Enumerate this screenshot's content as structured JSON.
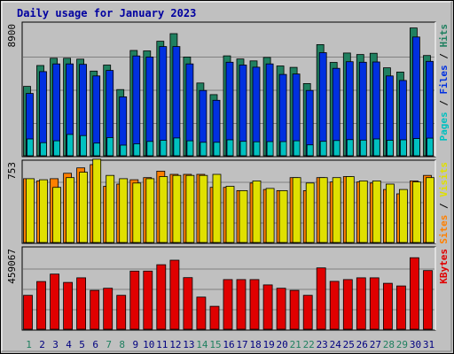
{
  "chart_data": {
    "type": "bar",
    "title": "Daily usage for January 2023",
    "categories": [
      "1",
      "2",
      "3",
      "4",
      "5",
      "6",
      "7",
      "8",
      "9",
      "10",
      "11",
      "12",
      "13",
      "14",
      "15",
      "16",
      "17",
      "18",
      "19",
      "20",
      "21",
      "22",
      "23",
      "24",
      "25",
      "26",
      "27",
      "28",
      "29",
      "30",
      "31"
    ],
    "weekend_days": [
      "1",
      "7",
      "8",
      "14",
      "15",
      "21",
      "22",
      "28",
      "29"
    ],
    "panels": [
      {
        "id": "hits",
        "ymax_label": "8900",
        "ymax": 8900,
        "legend": [
          {
            "text": "Pages",
            "color": "#00c0c0"
          },
          {
            "text": " / ",
            "color": "#000000"
          },
          {
            "text": "Files",
            "color": "#0030e0"
          },
          {
            "text": " / ",
            "color": "#000000"
          },
          {
            "text": "Hits",
            "color": "#208060"
          }
        ],
        "series": [
          {
            "name": "Hits",
            "color": "#208060",
            "values": [
              4650,
              6050,
              6540,
              6540,
              6480,
              5680,
              6080,
              4440,
              7060,
              7030,
              7680,
              8190,
              6620,
              4880,
              4100,
              6700,
              6490,
              6360,
              6590,
              6020,
              5930,
              4840,
              7450,
              6260,
              6890,
              6790,
              6870,
              5900,
              5610,
              8570,
              6720
            ]
          },
          {
            "name": "Files",
            "color": "#0030e0",
            "values": [
              4180,
              5640,
              6160,
              6160,
              6130,
              5350,
              5720,
              3950,
              6690,
              6620,
              7320,
              7320,
              6160,
              4380,
              3720,
              6270,
              6080,
              5940,
              6160,
              5450,
              5480,
              4380,
              6910,
              5860,
              6310,
              6270,
              6290,
              5350,
              5050,
              7960,
              6330
            ]
          },
          {
            "name": "Pages",
            "color": "#00c0c0",
            "values": [
              1130,
              880,
              1000,
              1430,
              1350,
              850,
              1220,
              710,
              800,
              960,
              1040,
              1190,
              1000,
              900,
              900,
              1070,
              970,
              940,
              950,
              950,
              1000,
              730,
              970,
              1020,
              1080,
              1050,
              1130,
              1040,
              1070,
              1150,
              1180
            ]
          }
        ]
      },
      {
        "id": "visits",
        "ymax_label": "753",
        "ymax": 753,
        "legend": [
          {
            "text": "Sites",
            "color": "#ff8000"
          },
          {
            "text": " / ",
            "color": "#000000"
          },
          {
            "text": "Visits",
            "color": "#e0e000"
          }
        ],
        "series": [
          {
            "name": "Sites",
            "color": "#ff8000",
            "values": [
              590,
              570,
              590,
              640,
              690,
              720,
              520,
              540,
              580,
              600,
              660,
              630,
              630,
              630,
              510,
              510,
              480,
              550,
              490,
              480,
              600,
              480,
              600,
              560,
              610,
              560,
              550,
              490,
              450,
              570,
              620
            ]
          },
          {
            "name": "Visits",
            "color": "#e0e000",
            "values": [
              590,
              580,
              510,
              600,
              650,
              770,
              620,
              590,
              550,
              590,
              610,
              620,
              620,
              620,
              630,
              520,
              480,
              570,
              500,
              480,
              600,
              550,
              600,
              600,
              610,
              570,
              570,
              540,
              490,
              560,
              600
            ]
          }
        ]
      },
      {
        "id": "kbytes",
        "ymax_label": "459067",
        "ymax": 459067,
        "legend": [
          {
            "text": "KBytes",
            "color": "#e00000"
          }
        ],
        "series": [
          {
            "name": "KBytes",
            "color": "#e00000",
            "values": [
              191000,
              269000,
              311000,
              264000,
              290000,
              219000,
              231000,
              191000,
              328000,
              328000,
              364000,
              389000,
              291000,
              181000,
              129000,
              280000,
              280000,
              280000,
              250000,
              231000,
              219000,
              191000,
              346000,
              270000,
              280000,
              290000,
              290000,
              259000,
              244000,
              403000,
              331000
            ]
          }
        ]
      }
    ]
  }
}
